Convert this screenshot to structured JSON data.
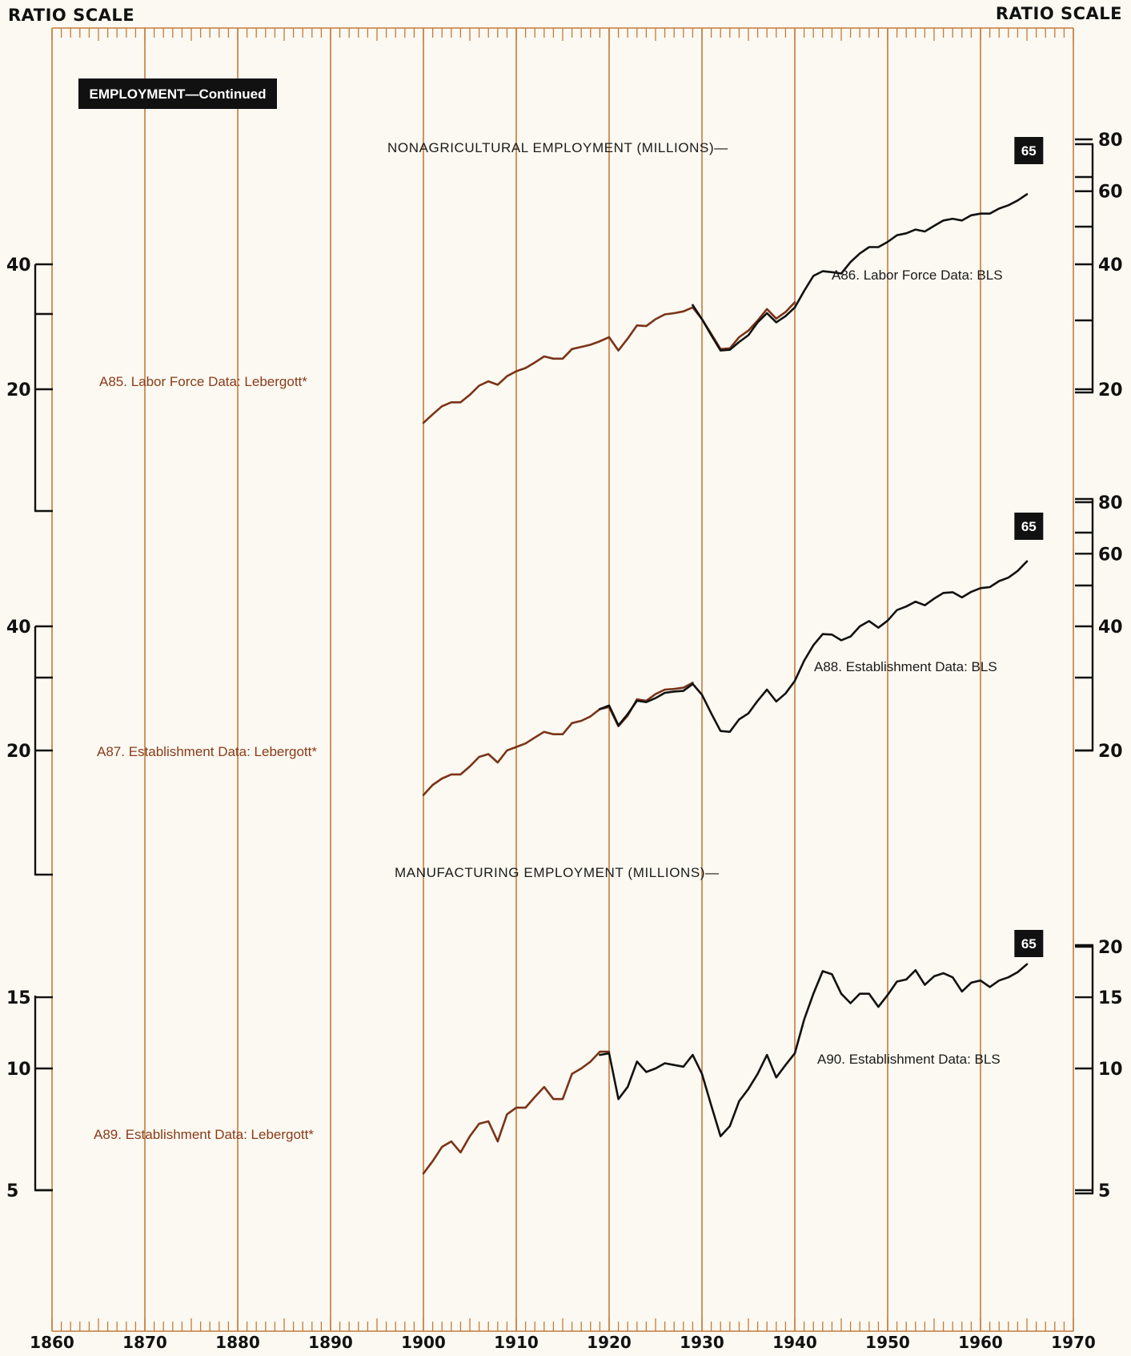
{
  "header": {
    "left_scale_label": "RATIO SCALE",
    "right_scale_label": "RATIO SCALE",
    "section_badge": "EMPLOYMENT—Continued"
  },
  "x_axis": {
    "ticks": [
      "1860",
      "1870",
      "1880",
      "1890",
      "1900",
      "1910",
      "1920",
      "1930",
      "1940",
      "1950",
      "1960",
      "1970"
    ]
  },
  "colors": {
    "background": "#fbf9f1",
    "gridline": "#c47a3c",
    "lebergott_series": "#7a3318",
    "bls_series": "#111111",
    "axis": "#111111"
  },
  "chart_data": [
    {
      "type": "line",
      "title": "NONAGRICULTURAL EMPLOYMENT (MILLIONS)—",
      "y_scale": "log",
      "end_badge": "65",
      "left_axis": {
        "ticks": [
          "40",
          "20"
        ]
      },
      "right_axis": {
        "ticks": [
          "80",
          "60",
          "40",
          "20"
        ]
      },
      "series": [
        {
          "name": "A85. Labor Force Data: Lebergott*",
          "color": "lebergott",
          "x": [
            1900,
            1901,
            1902,
            1903,
            1904,
            1905,
            1906,
            1907,
            1908,
            1909,
            1910,
            1911,
            1912,
            1913,
            1914,
            1915,
            1916,
            1917,
            1918,
            1919,
            1920,
            1921,
            1922,
            1923,
            1924,
            1925,
            1926,
            1927,
            1928,
            1929,
            1930,
            1931,
            1932,
            1933,
            1934,
            1935,
            1936,
            1937,
            1938,
            1939,
            1940
          ],
          "y": [
            16.6,
            17.4,
            18.2,
            18.6,
            18.6,
            19.4,
            20.4,
            20.9,
            20.5,
            21.5,
            22.1,
            22.5,
            23.2,
            24.0,
            23.7,
            23.7,
            25.0,
            25.3,
            25.6,
            26.1,
            26.7,
            24.8,
            26.5,
            28.5,
            28.4,
            29.5,
            30.3,
            30.5,
            30.8,
            31.5,
            29.5,
            27.2,
            25.0,
            25.1,
            26.7,
            27.7,
            29.3,
            31.2,
            29.6,
            30.7,
            32.4
          ]
        },
        {
          "name": "A86. Labor Force Data: BLS",
          "color": "bls",
          "x": [
            1929,
            1930,
            1931,
            1932,
            1933,
            1934,
            1935,
            1936,
            1937,
            1938,
            1939,
            1940,
            1941,
            1942,
            1943,
            1944,
            1945,
            1946,
            1947,
            1948,
            1949,
            1950,
            1951,
            1952,
            1953,
            1954,
            1955,
            1956,
            1957,
            1958,
            1959,
            1960,
            1961,
            1962,
            1963,
            1964,
            1965
          ],
          "y": [
            31.9,
            29.5,
            27.0,
            24.8,
            24.9,
            26.0,
            27.0,
            29.0,
            30.5,
            29.0,
            30.0,
            31.5,
            34.5,
            37.5,
            38.5,
            38.3,
            38.0,
            40.5,
            42.5,
            44.0,
            44.0,
            45.3,
            47.0,
            47.5,
            48.5,
            48.0,
            49.5,
            51.0,
            51.5,
            51.0,
            52.5,
            53.0,
            53.0,
            54.5,
            55.5,
            57.0,
            59.0
          ]
        }
      ]
    },
    {
      "type": "line",
      "title": "",
      "y_scale": "log",
      "end_badge": "65",
      "left_axis": {
        "ticks": [
          "40",
          "20"
        ]
      },
      "right_axis": {
        "ticks": [
          "80",
          "60",
          "40",
          "20"
        ]
      },
      "series": [
        {
          "name": "A87. Establishment Data: Lebergott*",
          "color": "lebergott",
          "x": [
            1900,
            1901,
            1902,
            1903,
            1904,
            1905,
            1906,
            1907,
            1908,
            1909,
            1910,
            1911,
            1912,
            1913,
            1914,
            1915,
            1916,
            1917,
            1918,
            1919,
            1920,
            1921,
            1922,
            1923,
            1924,
            1925,
            1926,
            1927,
            1928,
            1929
          ],
          "y": [
            15.6,
            16.5,
            17.1,
            17.5,
            17.5,
            18.3,
            19.3,
            19.6,
            18.7,
            20.0,
            20.4,
            20.8,
            21.5,
            22.2,
            21.9,
            21.9,
            23.3,
            23.6,
            24.2,
            25.2,
            25.5,
            22.9,
            24.3,
            26.6,
            26.4,
            27.4,
            28.1,
            28.2,
            28.4,
            29.2
          ]
        },
        {
          "name": "A88. Establishment Data: BLS",
          "color": "bls",
          "x": [
            1919,
            1920,
            1921,
            1922,
            1923,
            1924,
            1925,
            1926,
            1927,
            1928,
            1929,
            1930,
            1931,
            1932,
            1933,
            1934,
            1935,
            1936,
            1937,
            1938,
            1939,
            1940,
            1941,
            1942,
            1943,
            1944,
            1945,
            1946,
            1947,
            1948,
            1949,
            1950,
            1951,
            1952,
            1953,
            1954,
            1955,
            1956,
            1957,
            1958,
            1959,
            1960,
            1961,
            1962,
            1963,
            1964,
            1965
          ],
          "y": [
            25.2,
            25.7,
            23.0,
            24.5,
            26.4,
            26.2,
            26.8,
            27.6,
            27.8,
            27.9,
            29.0,
            27.3,
            24.6,
            22.3,
            22.2,
            23.8,
            24.6,
            26.4,
            28.1,
            26.3,
            27.5,
            29.5,
            33.0,
            36.0,
            38.3,
            38.2,
            37.0,
            37.8,
            40.0,
            41.2,
            39.7,
            41.3,
            43.8,
            44.7,
            45.9,
            45.0,
            46.7,
            48.2,
            48.4,
            47.0,
            48.5,
            49.5,
            49.8,
            51.5,
            52.5,
            54.5,
            57.5
          ]
        }
      ]
    },
    {
      "type": "line",
      "title": "MANUFACTURING EMPLOYMENT (MILLIONS)—",
      "y_scale": "log",
      "end_badge": "65",
      "left_axis": {
        "ticks": [
          "15",
          "10",
          "5"
        ]
      },
      "right_axis": {
        "ticks": [
          "20",
          "15",
          "10",
          "5"
        ]
      },
      "series": [
        {
          "name": "A89. Establishment Data: Lebergott*",
          "color": "lebergott",
          "x": [
            1900,
            1901,
            1902,
            1903,
            1904,
            1905,
            1906,
            1907,
            1908,
            1909,
            1910,
            1911,
            1912,
            1913,
            1914,
            1915,
            1916,
            1917,
            1918,
            1919,
            1920
          ],
          "y": [
            5.5,
            5.9,
            6.4,
            6.6,
            6.2,
            6.8,
            7.3,
            7.4,
            6.6,
            7.7,
            8.0,
            8.0,
            8.5,
            9.0,
            8.4,
            8.4,
            9.7,
            10.0,
            10.4,
            11.0,
            11.0
          ]
        },
        {
          "name": "A90. Establishment Data: BLS",
          "color": "bls",
          "x": [
            1919,
            1920,
            1921,
            1922,
            1923,
            1924,
            1925,
            1926,
            1927,
            1928,
            1929,
            1930,
            1931,
            1932,
            1933,
            1934,
            1935,
            1936,
            1937,
            1938,
            1939,
            1940,
            1941,
            1942,
            1943,
            1944,
            1945,
            1946,
            1947,
            1948,
            1949,
            1950,
            1951,
            1952,
            1953,
            1954,
            1955,
            1956,
            1957,
            1958,
            1959,
            1960,
            1961,
            1962,
            1963,
            1964,
            1965
          ],
          "y": [
            10.8,
            10.9,
            8.4,
            9.0,
            10.4,
            9.8,
            10.0,
            10.3,
            10.2,
            10.1,
            10.8,
            9.7,
            8.1,
            6.8,
            7.2,
            8.3,
            8.9,
            9.7,
            10.8,
            9.5,
            10.2,
            10.9,
            13.2,
            15.3,
            17.4,
            17.1,
            15.3,
            14.5,
            15.3,
            15.3,
            14.2,
            15.2,
            16.4,
            16.6,
            17.5,
            16.1,
            16.9,
            17.2,
            16.8,
            15.5,
            16.3,
            16.5,
            15.9,
            16.5,
            16.8,
            17.3,
            18.1
          ]
        }
      ]
    }
  ]
}
